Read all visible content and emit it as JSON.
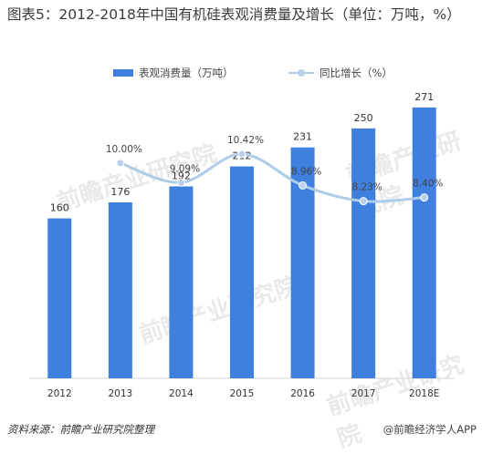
{
  "title": "图表5：2012-2018年中国有机硅表观消费量及增长（单位：万吨，%）",
  "legend": {
    "bar_label": "表观消费量（万吨）",
    "line_label": "同比增长（%）"
  },
  "source_text": "资料来源：前瞻产业研究院整理",
  "brand_text": "@前瞻经济学人APP",
  "watermark_text": "前瞻产业研究院",
  "colors": {
    "bar": "#3f7fde",
    "line": "#aecbe8",
    "dot": "#b9d1ea"
  },
  "chart_data": {
    "type": "bar",
    "categories": [
      "2012",
      "2013",
      "2014",
      "2015",
      "2016",
      "2017",
      "2018E"
    ],
    "series": [
      {
        "name": "表观消费量（万吨）",
        "type": "bar",
        "values": [
          160,
          176,
          192,
          212,
          231,
          250,
          271
        ],
        "labels": [
          "160",
          "176",
          "192",
          "212",
          "231",
          "250",
          "271"
        ]
      },
      {
        "name": "同比增长（%）",
        "type": "line",
        "values": [
          null,
          10.0,
          9.09,
          10.42,
          8.96,
          8.23,
          8.4
        ],
        "labels": [
          null,
          "10.00%",
          "9.09%",
          "10.42%",
          "8.96%",
          "8.23%",
          "8.40%"
        ]
      }
    ],
    "ylim": [
      0,
      280
    ],
    "y2lim": [
      0,
      13
    ],
    "legend_position": "top"
  }
}
